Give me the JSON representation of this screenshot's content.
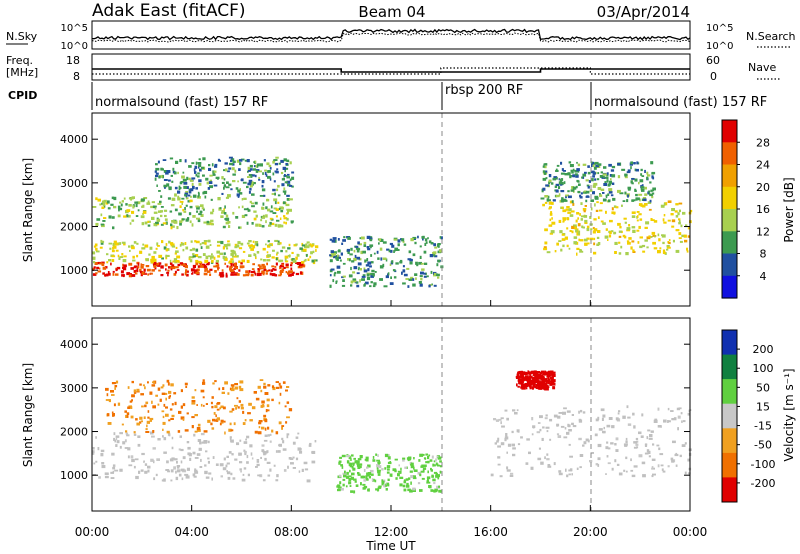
{
  "header": {
    "station": "Adak East (fitACF)",
    "beam": "Beam 04",
    "date": "03/Apr/2014"
  },
  "top_panels": {
    "nsky_label": "N.Sky",
    "nsearch_label": "N.Search",
    "nsky_ticks": [
      "10^5",
      "10^0"
    ],
    "nsky_right_ticks": [
      "10^5",
      "10^0"
    ],
    "freq_label_1": "Freq.",
    "freq_label_2": "[MHz]",
    "freq_ticks": [
      "18",
      "8"
    ],
    "nave_label": "Nave",
    "nave_ticks": [
      "60",
      "0"
    ],
    "cpid_label": "CPID",
    "cpid_segments": [
      {
        "label": "normalsound (fast) 157 RF",
        "start_hour": 0,
        "end_hour": 14
      },
      {
        "label": "rbsp 200 RF",
        "start_hour": 14,
        "end_hour": 20
      },
      {
        "label": "normalsound (fast) 157 RF",
        "start_hour": 20,
        "end_hour": 24
      }
    ]
  },
  "panels": {
    "power": {
      "ylabel": "Slant Range [km]",
      "colorbar_label": "Power [dB]",
      "colorbar_ticks": [
        "28",
        "24",
        "20",
        "16",
        "12",
        "8",
        "4"
      ]
    },
    "velocity": {
      "ylabel": "Slant Range [km]",
      "colorbar_label": "Velocity [m s⁻¹]",
      "colorbar_ticks": [
        "200",
        "100",
        "50",
        "15",
        "-15",
        "-50",
        "-100",
        "-200"
      ]
    }
  },
  "xaxis": {
    "label": "Time UT",
    "ticks": [
      "00:00",
      "04:00",
      "08:00",
      "12:00",
      "16:00",
      "20:00",
      "00:00"
    ]
  },
  "colors": {
    "power_scale": [
      "#e00000",
      "#f06000",
      "#f0a000",
      "#f2d000",
      "#a8d050",
      "#3c9a50",
      "#2050a0",
      "#1010e0"
    ],
    "velocity_scale": [
      "#1030b0",
      "#108040",
      "#60d040",
      "#c8c8c8",
      "#f0a020",
      "#f07000",
      "#e00000"
    ],
    "ground_scatter": "#c0c0c0"
  },
  "chart_data": {
    "type": "heatmap",
    "title": "Adak East (fitACF)  Beam 04  03/Apr/2014",
    "xlabel": "Time UT",
    "ylabel": "Slant Range [km]",
    "xlim": [
      0,
      24
    ],
    "ylim": [
      180,
      4600
    ],
    "yticks": [
      1000,
      2000,
      3000,
      4000
    ],
    "control_program_boundaries_hour": [
      14,
      20
    ],
    "frequency_mhz": [
      {
        "start_hour": 0,
        "end_hour": 10,
        "value": 12.0
      },
      {
        "start_hour": 10,
        "end_hour": 18,
        "value": 10.5
      },
      {
        "start_hour": 18,
        "end_hour": 24,
        "value": 12.0
      }
    ],
    "power_panel": {
      "colorbar": {
        "label": "Power [dB]",
        "ticks": [
          4,
          8,
          12,
          16,
          20,
          24,
          28
        ],
        "range": [
          0,
          30
        ]
      },
      "regions": [
        {
          "t0": 0.0,
          "t1": 8.5,
          "r0": 900,
          "r1": 1200,
          "power_db": 28
        },
        {
          "t0": 0.0,
          "t1": 9.0,
          "r0": 1200,
          "r1": 1700,
          "power_db": 14
        },
        {
          "t0": 0.0,
          "t1": 8.0,
          "r0": 2000,
          "r1": 2700,
          "power_db": 12
        },
        {
          "t0": 2.5,
          "t1": 8.0,
          "r0": 2700,
          "r1": 3600,
          "power_db": 8
        },
        {
          "t0": 9.5,
          "t1": 14.0,
          "r0": 650,
          "r1": 1800,
          "power_db": 8
        },
        {
          "t0": 18.0,
          "t1": 24.0,
          "r0": 1400,
          "r1": 2600,
          "power_db": 16
        },
        {
          "t0": 18.0,
          "t1": 22.5,
          "r0": 2600,
          "r1": 3500,
          "power_db": 8
        }
      ]
    },
    "velocity_panel": {
      "colorbar": {
        "label": "Velocity [m s⁻¹]",
        "ticks": [
          -200,
          -100,
          -50,
          -15,
          15,
          50,
          100,
          200
        ]
      },
      "regions": [
        {
          "t0": 0.0,
          "t1": 9.0,
          "r0": 900,
          "r1": 2000,
          "velocity": 0,
          "ground_scatter": true
        },
        {
          "t0": 0.5,
          "t1": 8.0,
          "r0": 2000,
          "r1": 3200,
          "velocity": -50
        },
        {
          "t0": 9.8,
          "t1": 14.0,
          "r0": 650,
          "r1": 1500,
          "velocity": 30
        },
        {
          "t0": 16.0,
          "t1": 24.0,
          "r0": 1000,
          "r1": 2600,
          "velocity": 0,
          "ground_scatter": true
        },
        {
          "t0": 17.0,
          "t1": 18.5,
          "r0": 3000,
          "r1": 3400,
          "velocity": -200
        }
      ]
    }
  }
}
